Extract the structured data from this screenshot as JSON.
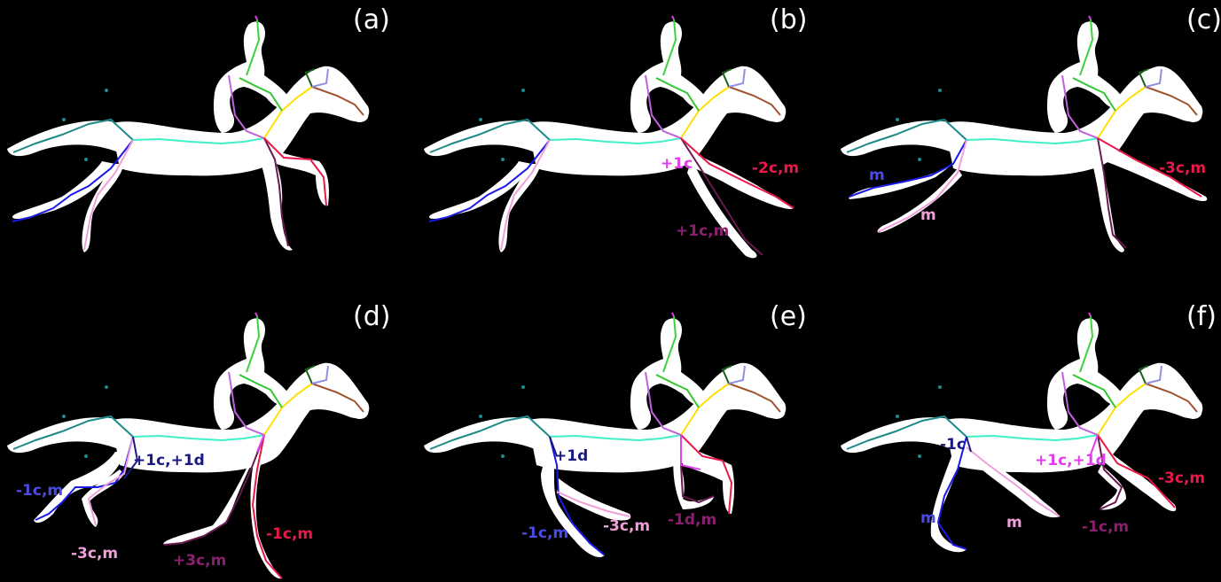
{
  "panels": [
    {
      "id": "a",
      "label": "(a)",
      "annotations": []
    },
    {
      "id": "b",
      "label": "(b)",
      "annotations": [
        {
          "text": "+1c",
          "color": "#e23cf0"
        },
        {
          "text": "-2c,m",
          "color": "#e8194a"
        },
        {
          "text": "+1c,m",
          "color": "#8a1f6e"
        }
      ]
    },
    {
      "id": "c",
      "label": "(c)",
      "annotations": [
        {
          "text": "m",
          "color": "#4a4ae8"
        },
        {
          "text": "m",
          "color": "#f0a0d8"
        },
        {
          "text": "-3c,m",
          "color": "#e8194a"
        }
      ]
    },
    {
      "id": "d",
      "label": "(d)",
      "annotations": [
        {
          "text": "+1c,+1d",
          "color": "#1a1a80"
        },
        {
          "text": "-1c,m",
          "color": "#4a4ae8"
        },
        {
          "text": "-3c,m",
          "color": "#f0a0d8"
        },
        {
          "text": "+3c,m",
          "color": "#8a1f6e"
        },
        {
          "text": "-1c,m",
          "color": "#e8194a"
        }
      ]
    },
    {
      "id": "e",
      "label": "(e)",
      "annotations": [
        {
          "text": "+1d",
          "color": "#1a1a80"
        },
        {
          "text": "-1c,m",
          "color": "#4a4ae8"
        },
        {
          "text": "-3c,m",
          "color": "#f0a0d8"
        },
        {
          "text": "-1d,m",
          "color": "#8a1f6e"
        }
      ]
    },
    {
      "id": "f",
      "label": "(f)",
      "annotations": [
        {
          "text": "-1c",
          "color": "#1a1a80"
        },
        {
          "text": "+1c,+1d",
          "color": "#e23cf0"
        },
        {
          "text": "-3c,m",
          "color": "#e8194a"
        },
        {
          "text": "m",
          "color": "#4a4ae8"
        },
        {
          "text": "m",
          "color": "#f0a0d8"
        },
        {
          "text": "-1c,m",
          "color": "#8a1f6e"
        }
      ]
    }
  ],
  "colors": {
    "background": "#000000",
    "silhouette": "#ffffff",
    "tail": "#1f8a8a",
    "spine": "#3ff0c8",
    "neck": "#ffe000",
    "head": "#a0522d",
    "ear": "#1a5f1a",
    "ear2": "#9090e0",
    "rider_torso": "#40d040",
    "rider_arm": "#30c830",
    "rider_leg": "#c060e0",
    "rider_head": "#e23cf0",
    "front_right": "#e8194a",
    "front_left": "#6a1a50",
    "hind_right": "#1a1ae8",
    "hind_left": "#f0a0d8",
    "hind_upper": "#1a1a80",
    "front_upper": "#e23cf0",
    "outlier": "#1f8a8a"
  }
}
